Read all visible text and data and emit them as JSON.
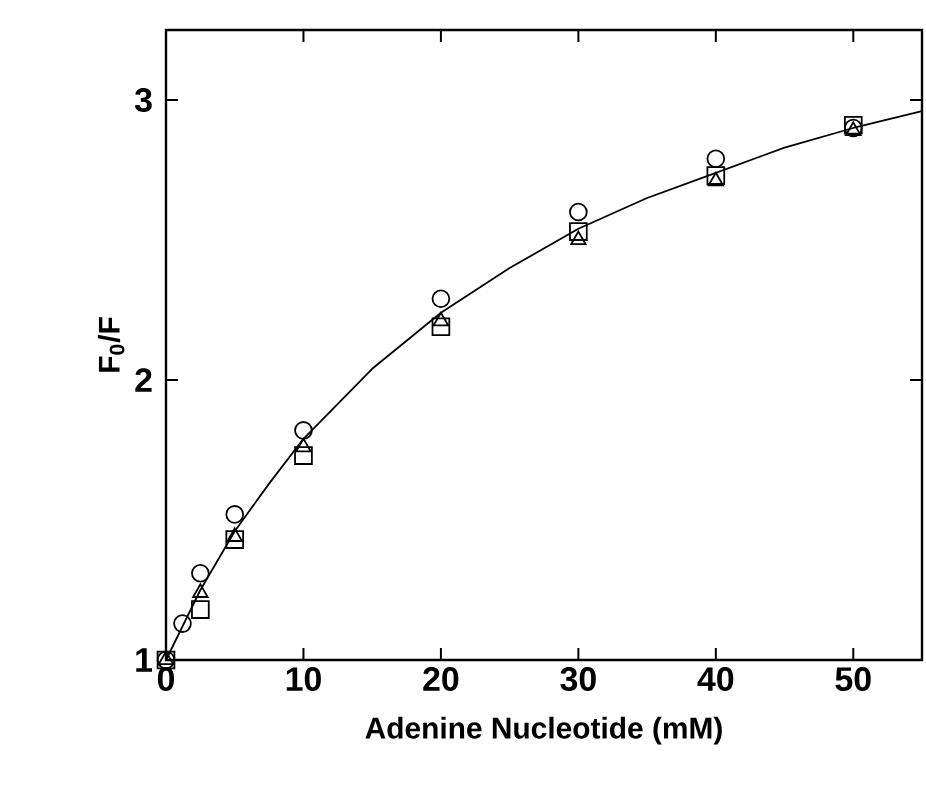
{
  "chart_data": {
    "type": "scatter",
    "xlabel": "Adenine Nucleotide (mM)",
    "ylabel": "F$_{0}$/F",
    "series": [
      {
        "color": "#000000",
        "marker": "circle",
        "x": [
          0,
          1.2,
          2.5,
          5,
          10,
          20,
          30,
          40,
          50
        ],
        "values": [
          1.0,
          1.13,
          1.31,
          1.52,
          1.82,
          2.29,
          2.6,
          2.79,
          2.9
        ]
      },
      {
        "color": "#000000",
        "marker": "square",
        "x": [
          0,
          2.5,
          5,
          10,
          20,
          30,
          40,
          50
        ],
        "values": [
          1.0,
          1.18,
          1.43,
          1.73,
          2.19,
          2.53,
          2.73,
          2.91
        ]
      },
      {
        "color": "#000000",
        "marker": "triangle",
        "x": [
          0,
          2.5,
          5,
          10,
          20,
          30,
          40,
          50
        ],
        "values": [
          1.0,
          1.24,
          1.44,
          1.76,
          2.21,
          2.5,
          2.71,
          2.89
        ]
      },
      {
        "type": "line",
        "color": "#000000",
        "marker": "none",
        "line_style": "solid",
        "x": [
          0,
          2.5,
          5,
          7.5,
          10,
          15,
          20,
          25,
          30,
          35,
          40,
          45,
          50,
          55
        ],
        "values": [
          1.0,
          1.25,
          1.46,
          1.63,
          1.79,
          2.04,
          2.24,
          2.4,
          2.54,
          2.65,
          2.74,
          2.83,
          2.9,
          2.96
        ]
      }
    ],
    "xlim": [
      0,
      55
    ],
    "ylim": [
      1,
      3.25
    ],
    "xticks": [
      0,
      10,
      20,
      30,
      40,
      50
    ],
    "yticks": [
      1,
      2,
      3
    ],
    "grid": false
  }
}
